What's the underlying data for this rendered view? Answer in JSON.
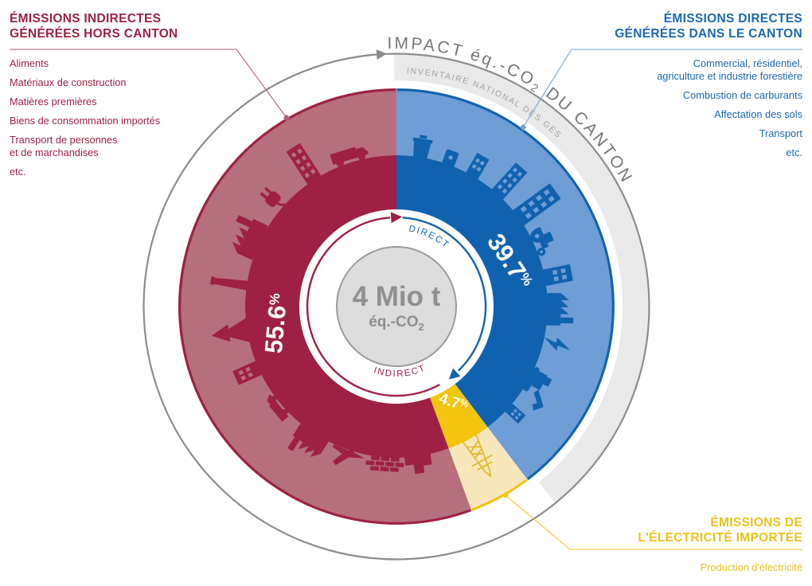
{
  "colors": {
    "indirect_dark": "#9e2044",
    "indirect_light": "#b66f7c",
    "direct_dark": "#1162ae",
    "direct_light": "#6f9dd6",
    "electricity_bright": "#f2c50f",
    "electricity_pale": "#f7e7ba",
    "electricity_icon": "#dfb92c",
    "electricity_text": "#eec11c",
    "band_gray": "#e9e9e9",
    "outline_gray": "#8d8d8d",
    "center_fill": "#dcdcdc",
    "center_stroke": "#9b9b9b",
    "center_text": "#8f8f8f",
    "impact_text": "#767676",
    "inventory_text": "#a3a3a3",
    "leader_red": "#b5607a",
    "leader_blue": "#6fa3d8",
    "leader_yellow": "#f2c51f",
    "label_white": "#ffffff"
  },
  "legend_left": {
    "title_line1": "ÉMISSIONS INDIRECTES",
    "title_line2": "GÉNÉRÉES HORS CANTON",
    "items": [
      "Aliments",
      "Matériaux de construction",
      "Matières premières",
      "Biens de consommation importés",
      "Transport de personnes\net de marchandises",
      "etc."
    ]
  },
  "legend_right": {
    "title_line1": "ÉMISSIONS DIRECTES",
    "title_line2": "GÉNÉRÉES DANS LE CANTON",
    "items": [
      "Commercial, résidentiel,\nagriculture et industrie forestière",
      "Combustion de carburants",
      "Affectation des sols",
      "Transport",
      "etc."
    ]
  },
  "legend_electricity": {
    "title_line1": "ÉMISSIONS DE",
    "title_line2": "L'ÉLECTRICITÉ IMPORTÉE",
    "items": [
      "Production d'électricité"
    ]
  },
  "chart_data": {
    "type": "donut",
    "center_value": "4 Mio t",
    "center_unit_pre": "éq.-CO",
    "center_unit_sub": "2",
    "outer_arc_title_pre": "IMPACT éq.-CO",
    "outer_arc_title_sub": "2",
    "outer_arc_title_post": " DU CANTON",
    "band_label": "INVENTAIRE NATIONAL DES GES",
    "flow_label_direct": "DIRECT",
    "flow_label_indirect": "INDIRECT",
    "pct_symbol": "%",
    "segments": [
      {
        "id": "direct",
        "name": "Émissions directes générées dans le canton",
        "label": "39.7",
        "value_pct": 39.7,
        "start_deg": 0,
        "end_deg": 142.9,
        "color_dark": "#1162ae",
        "color_light": "#6f9dd6"
      },
      {
        "id": "electricity",
        "name": "Émissions de l'électricité importée",
        "label": "4.7",
        "value_pct": 4.7,
        "start_deg": 142.9,
        "end_deg": 159.8,
        "color_dark": "#f2c50f",
        "color_light": "#f7e7ba"
      },
      {
        "id": "indirect",
        "name": "Émissions indirectes générées hors canton",
        "label": "55.6",
        "value_pct": 55.6,
        "start_deg": 159.8,
        "end_deg": 360,
        "color_dark": "#9e2044",
        "color_light": "#b66f7c"
      }
    ]
  }
}
